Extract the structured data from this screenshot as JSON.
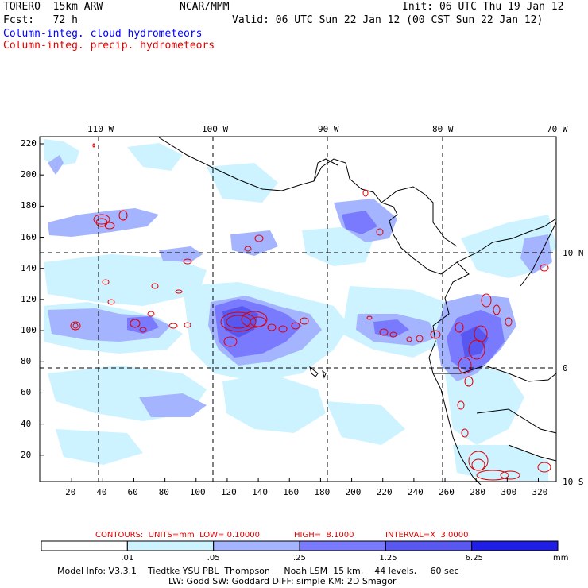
{
  "header": {
    "model": "TORERO  15km ARW",
    "center": "NCAR/MMM",
    "init": "Init: 06 UTC Thu 19 Jan 12",
    "fcst": "Fcst:   72 h",
    "valid": "Valid: 06 UTC Sun 22 Jan 12 (00 CST Sun 22 Jan 12)",
    "field1": "Column-integ. cloud hydrometeors",
    "field2": "Column-integ. precip. hydrometeors"
  },
  "map": {
    "lon_labels": [
      "110 W",
      "100 W",
      "90 W",
      "80 W",
      "70 W"
    ],
    "lat_labels": [
      "10 N",
      "0",
      "10 S"
    ],
    "y_ticks": [
      "220",
      "200",
      "180",
      "160",
      "140",
      "120",
      "100",
      "80",
      "60",
      "40",
      "20"
    ],
    "x_ticks": [
      "20",
      "40",
      "60",
      "80",
      "100",
      "120",
      "140",
      "160",
      "180",
      "200",
      "220",
      "240",
      "260",
      "280",
      "300",
      "320"
    ]
  },
  "contour_info": {
    "contours": "CONTOURS:  UNITS=mm  LOW= 0.10000",
    "high": "HIGH=  8.1000",
    "interval": "INTERVAL=X  3.0000"
  },
  "colorbar": {
    "levels": [
      ".01",
      ".05",
      ".25",
      "1.25",
      "6.25"
    ],
    "units": "mm",
    "colors": [
      "#ffffff",
      "#ccf3ff",
      "#a4b4ff",
      "#7a7aff",
      "#5858f0",
      "#1e1ee6"
    ]
  },
  "model_info": {
    "line1": "Model Info: V3.3.1    Tiedtke YSU PBL  Thompson     Noah LSM  15 km,    44 levels,     60 sec",
    "line2": "LW: Godd SW: Goddard DIFF: simple KM: 2D Smagor"
  },
  "colors": {
    "cloud_light": "#ccf3ff",
    "cloud_mid": "#a4b4ff",
    "cloud_high": "#7a7aff",
    "cloud_top": "#5858f0",
    "contour": "#e00000",
    "title_blue": "#0000ff"
  }
}
